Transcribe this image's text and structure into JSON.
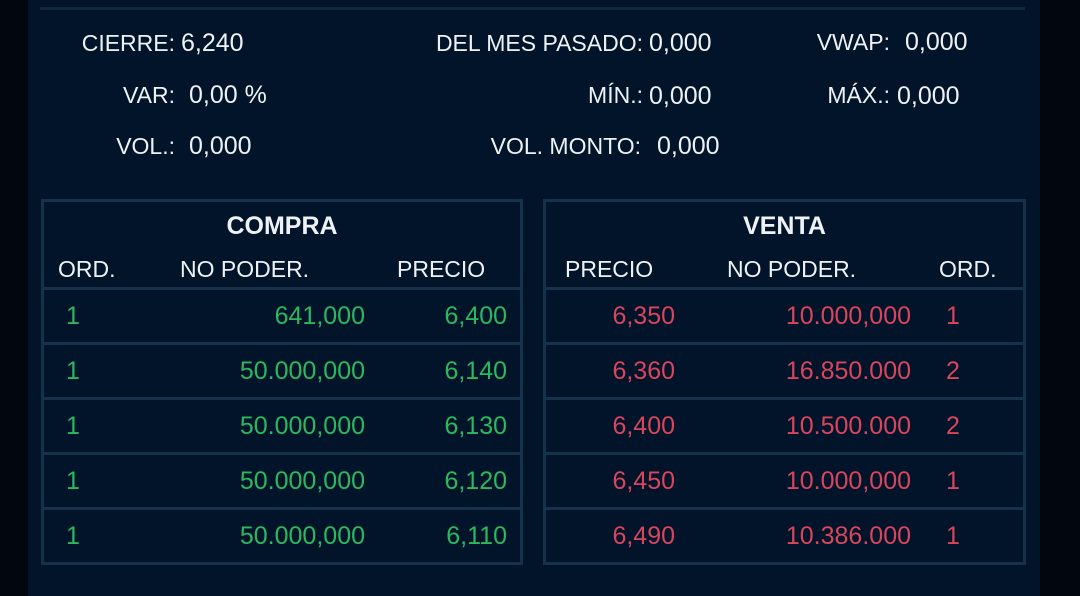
{
  "stats": {
    "cierre": {
      "label": "CIERRE:",
      "value": "6,240"
    },
    "mes_pasado": {
      "label": "DEL MES PASADO:",
      "value": "0,000"
    },
    "vwap": {
      "label": "VWAP:",
      "value": "0,000"
    },
    "var": {
      "label": "VAR:",
      "value": "0,00 %"
    },
    "min": {
      "label": "MÍN.:",
      "value": "0,000"
    },
    "max": {
      "label": "MÁX.:",
      "value": "0,000"
    },
    "vol": {
      "label": "VOL.:",
      "value": "0,000"
    },
    "vol_monto": {
      "label": "VOL. MONTO:",
      "value": "0,000"
    }
  },
  "compra": {
    "title": "COMPRA",
    "columns": [
      "ORD.",
      "NO PODER.",
      "PRECIO"
    ],
    "rows": [
      {
        "ord": "1",
        "nominal": "641,000",
        "precio": "6,400"
      },
      {
        "ord": "1",
        "nominal": "50.000,000",
        "precio": "6,140"
      },
      {
        "ord": "1",
        "nominal": "50.000,000",
        "precio": "6,130"
      },
      {
        "ord": "1",
        "nominal": "50.000,000",
        "precio": "6,120"
      },
      {
        "ord": "1",
        "nominal": "50.000,000",
        "precio": "6,110"
      }
    ]
  },
  "venta": {
    "title": "VENTA",
    "columns": [
      "PRECIO",
      "NO PODER.",
      "ORD."
    ],
    "rows": [
      {
        "precio": "6,350",
        "nominal": "10.000,000",
        "ord": "1"
      },
      {
        "precio": "6,360",
        "nominal": "16.850.000",
        "ord": "2"
      },
      {
        "precio": "6,400",
        "nominal": "10.500.000",
        "ord": "2"
      },
      {
        "precio": "6,450",
        "nominal": "10.000,000",
        "ord": "1"
      },
      {
        "precio": "6,490",
        "nominal": "10.386.000",
        "ord": "1"
      }
    ]
  },
  "colors": {
    "buy": "#2cb85f",
    "sell": "#d8455d",
    "background": "#011429",
    "border": "#14334a"
  }
}
